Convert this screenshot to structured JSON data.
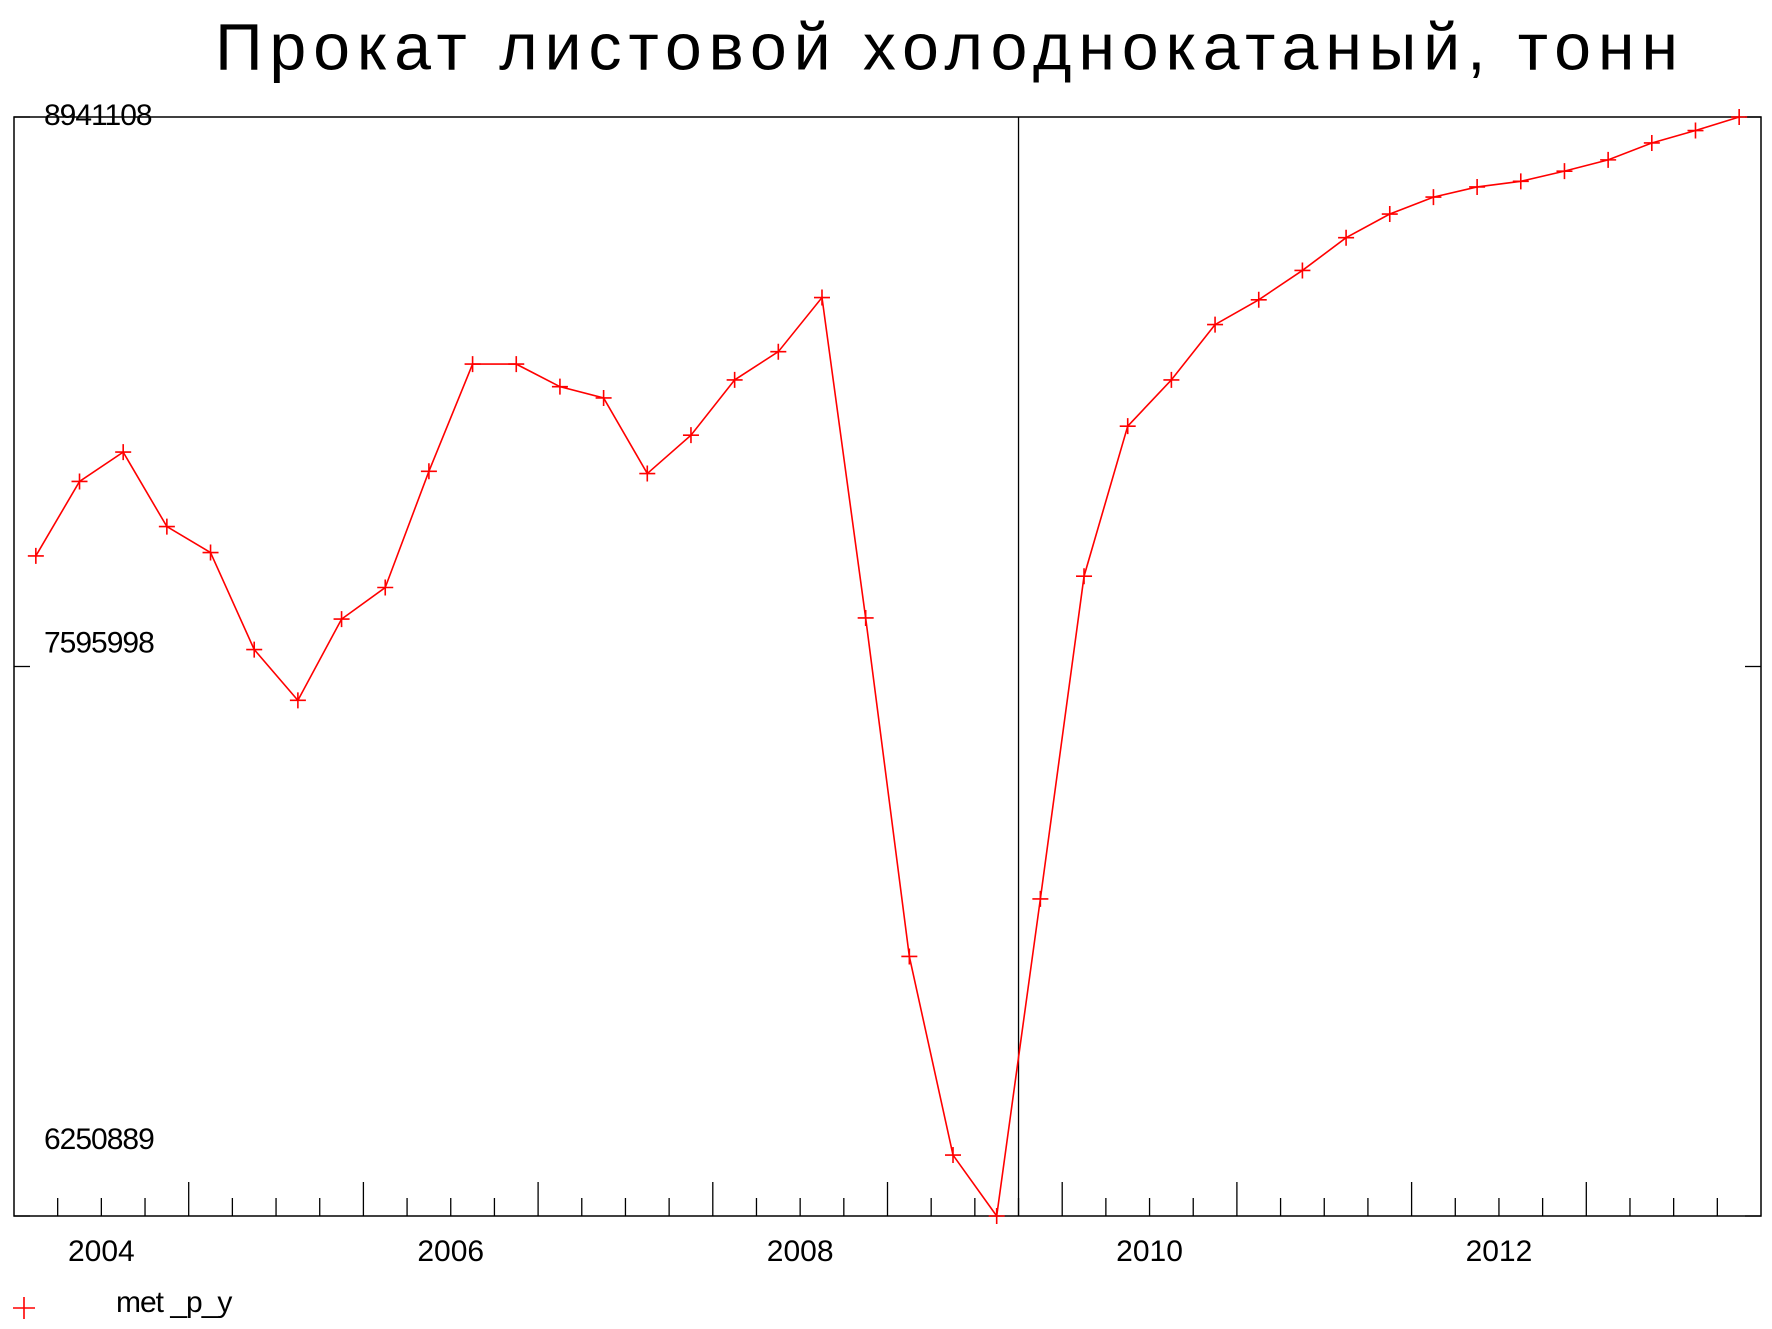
{
  "chart_data": {
    "type": "line",
    "title": "Прокат листовой холоднокатаный, тонн",
    "x": [
      2004.125,
      2004.375,
      2004.625,
      2004.875,
      2005.125,
      2005.375,
      2005.625,
      2005.875,
      2006.125,
      2006.375,
      2006.625,
      2006.875,
      2007.125,
      2007.375,
      2007.625,
      2007.875,
      2008.125,
      2008.375,
      2008.625,
      2008.875,
      2009.125,
      2009.375,
      2009.625,
      2009.875,
      2010.125,
      2010.375,
      2010.625,
      2010.875,
      2011.125,
      2011.375,
      2011.625,
      2011.875,
      2012.125,
      2012.375,
      2012.625,
      2012.875,
      2013.125,
      2013.375,
      2013.625,
      2013.875
    ],
    "series": [
      {
        "name": "met _p_y",
        "color": "#ff0000",
        "values": [
          7866690,
          8048982,
          8120794,
          7938502,
          7874976,
          7637444,
          7513154,
          7712018,
          7789354,
          8073840,
          8336230,
          8336230,
          8280990,
          8253370,
          8068316,
          8162224,
          8297562,
          8366612,
          8499188,
          7714780,
          6886180,
          6400068,
          6250889,
          7027042,
          7816974,
          8184320,
          8297562,
          8432900,
          8493664,
          8565476,
          8645574,
          8703576,
          8745006,
          8769864,
          8783674,
          8808532,
          8836152,
          8877582,
          8907964,
          8941108
        ]
      }
    ],
    "xlim": [
      2004,
      2014
    ],
    "xticks": [
      {
        "value": 2004.5,
        "label": "2004"
      },
      {
        "value": 2006.5,
        "label": "2006"
      },
      {
        "value": 2008.5,
        "label": "2008"
      },
      {
        "value": 2010.5,
        "label": "2010"
      },
      {
        "value": 2012.5,
        "label": "2012"
      }
    ],
    "ylim": [
      6250889,
      8941108
    ],
    "yticks": [
      6250889,
      7595998,
      8941108
    ],
    "vline": 2009.75
  }
}
